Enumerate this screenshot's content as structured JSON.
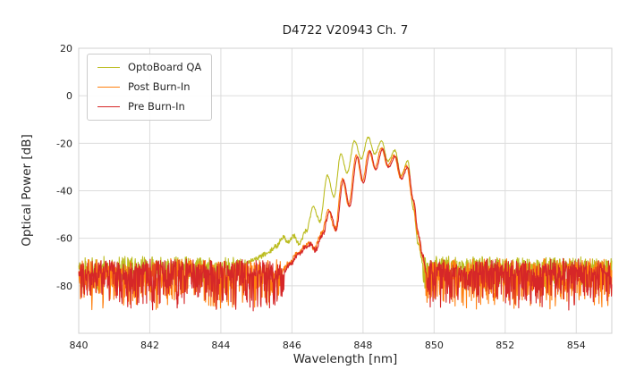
{
  "chart_data": {
    "type": "line",
    "title": "D4722 V20943 Ch. 7",
    "xlabel": "Wavelength [nm]",
    "ylabel": "Optical Power [dB]",
    "xlim": [
      840,
      855
    ],
    "ylim": [
      -100,
      20
    ],
    "xticks": [
      840,
      842,
      844,
      846,
      848,
      850,
      852,
      854
    ],
    "yticks": [
      -80,
      -60,
      -40,
      -20,
      0,
      20
    ],
    "grid": true,
    "grid_color": "#dcdcdc",
    "frame_color": "#d0d0d0",
    "legend_position": "upper left",
    "series": [
      {
        "name": "OptoBoard QA",
        "color": "#bcbd22",
        "seed": 7,
        "noise": {
          "base": -71.5,
          "up": 4,
          "down": 11,
          "pow": 2
        },
        "anchors": [
          [
            844.7,
            -70.5
          ],
          [
            845.0,
            -68.5
          ],
          [
            845.3,
            -66.5
          ],
          [
            845.55,
            -63.5
          ],
          [
            845.75,
            -59.5
          ],
          [
            845.9,
            -61.5
          ],
          [
            846.05,
            -59
          ],
          [
            846.2,
            -62.5
          ],
          [
            846.4,
            -57
          ],
          [
            846.6,
            -46.5
          ],
          [
            846.78,
            -53
          ],
          [
            847.0,
            -33.5
          ],
          [
            847.18,
            -42.5
          ],
          [
            847.38,
            -24.5
          ],
          [
            847.55,
            -32.5
          ],
          [
            847.76,
            -19
          ],
          [
            847.95,
            -26.5
          ],
          [
            848.15,
            -17.5
          ],
          [
            848.33,
            -24.5
          ],
          [
            848.52,
            -19
          ],
          [
            848.7,
            -27.5
          ],
          [
            848.9,
            -23
          ],
          [
            849.07,
            -33.5
          ],
          [
            849.26,
            -27.5
          ],
          [
            849.42,
            -48
          ],
          [
            849.55,
            -62
          ],
          [
            849.68,
            -70
          ]
        ]
      },
      {
        "name": "Post Burn-In",
        "color": "#ff7f0e",
        "seed": 42,
        "noise": {
          "base": -75,
          "up": 6.5,
          "down": 16,
          "pow": 2.2
        },
        "anchors": [
          [
            845.72,
            -73.5
          ],
          [
            845.94,
            -70
          ],
          [
            846.14,
            -66.5
          ],
          [
            846.34,
            -63.5
          ],
          [
            846.49,
            -62
          ],
          [
            846.63,
            -64.5
          ],
          [
            846.83,
            -58
          ],
          [
            847.03,
            -48
          ],
          [
            847.21,
            -56
          ],
          [
            847.42,
            -35
          ],
          [
            847.59,
            -46
          ],
          [
            847.81,
            -25
          ],
          [
            847.98,
            -36
          ],
          [
            848.17,
            -23
          ],
          [
            848.33,
            -30.5
          ],
          [
            848.52,
            -22
          ],
          [
            848.69,
            -29.5
          ],
          [
            848.88,
            -25
          ],
          [
            849.05,
            -34.5
          ],
          [
            849.23,
            -29.5
          ],
          [
            849.39,
            -43.5
          ],
          [
            849.53,
            -57.5
          ],
          [
            849.65,
            -66.5
          ],
          [
            849.76,
            -74
          ]
        ]
      },
      {
        "name": "Pre Burn-In",
        "color": "#d62728",
        "seed": 1337,
        "noise": {
          "base": -75,
          "up": 6.5,
          "down": 16,
          "pow": 2.2
        },
        "anchors": [
          [
            845.78,
            -73.5
          ],
          [
            845.98,
            -70.5
          ],
          [
            846.18,
            -67
          ],
          [
            846.38,
            -64
          ],
          [
            846.52,
            -62.5
          ],
          [
            846.66,
            -65
          ],
          [
            846.86,
            -58.5
          ],
          [
            847.06,
            -48.5
          ],
          [
            847.24,
            -56.5
          ],
          [
            847.45,
            -35.5
          ],
          [
            847.62,
            -46.5
          ],
          [
            847.84,
            -25.5
          ],
          [
            848.01,
            -36.5
          ],
          [
            848.2,
            -23.5
          ],
          [
            848.36,
            -31
          ],
          [
            848.55,
            -22.5
          ],
          [
            848.72,
            -30
          ],
          [
            848.91,
            -25.5
          ],
          [
            849.08,
            -35
          ],
          [
            849.26,
            -30
          ],
          [
            849.42,
            -44
          ],
          [
            849.56,
            -58
          ],
          [
            849.68,
            -67
          ],
          [
            849.78,
            -74
          ]
        ]
      }
    ]
  }
}
